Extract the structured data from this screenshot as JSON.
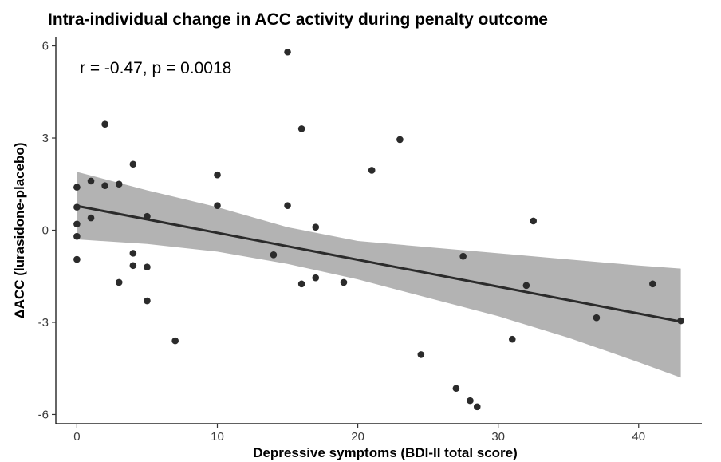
{
  "chart_data": {
    "type": "scatter",
    "title": "Intra-individual change in ACC activity during penalty outcome",
    "xlabel": "Depressive symptoms (BDI-II total score)",
    "ylabel": "ΔACC (lurasidone-placebo)",
    "annotation": "r = -0.47, p = 0.0018",
    "xlim": [
      -1.5,
      44.5
    ],
    "ylim": [
      -6.3,
      6.3
    ],
    "x_ticks": [
      0,
      10,
      20,
      30,
      40
    ],
    "y_ticks": [
      6,
      3,
      0,
      -3,
      -6
    ],
    "grid": false,
    "legend": "none",
    "point_color": "#2b2b2b",
    "fit": {
      "slope": -0.0876,
      "intercept": 0.79,
      "x_range": [
        0,
        43
      ],
      "band_color": "#b3b3b3",
      "line_color": "#2b2b2b",
      "ci_upper": [
        [
          0,
          1.9
        ],
        [
          5,
          1.3
        ],
        [
          10,
          0.75
        ],
        [
          15,
          0.1
        ],
        [
          20,
          -0.35
        ],
        [
          25,
          -0.55
        ],
        [
          30,
          -0.75
        ],
        [
          35,
          -0.95
        ],
        [
          40,
          -1.15
        ],
        [
          43,
          -1.25
        ]
      ],
      "ci_lower": [
        [
          0,
          -0.3
        ],
        [
          5,
          -0.45
        ],
        [
          10,
          -0.7
        ],
        [
          15,
          -1.1
        ],
        [
          20,
          -1.6
        ],
        [
          25,
          -2.2
        ],
        [
          30,
          -2.8
        ],
        [
          35,
          -3.5
        ],
        [
          40,
          -4.3
        ],
        [
          43,
          -4.8
        ]
      ]
    },
    "points": [
      {
        "x": 0,
        "y": 1.4
      },
      {
        "x": 0,
        "y": 0.75
      },
      {
        "x": 0,
        "y": 0.2
      },
      {
        "x": 0,
        "y": -0.2
      },
      {
        "x": 0,
        "y": -0.95
      },
      {
        "x": 1,
        "y": 1.6
      },
      {
        "x": 1,
        "y": 0.4
      },
      {
        "x": 2,
        "y": 3.45
      },
      {
        "x": 2,
        "y": 1.45
      },
      {
        "x": 3,
        "y": 1.5
      },
      {
        "x": 3,
        "y": -1.7
      },
      {
        "x": 4,
        "y": 2.15
      },
      {
        "x": 4,
        "y": -0.75
      },
      {
        "x": 4,
        "y": -1.15
      },
      {
        "x": 5,
        "y": 0.45
      },
      {
        "x": 5,
        "y": -1.2
      },
      {
        "x": 5,
        "y": -2.3
      },
      {
        "x": 7,
        "y": -3.6
      },
      {
        "x": 10,
        "y": 1.8
      },
      {
        "x": 10,
        "y": 0.8
      },
      {
        "x": 14,
        "y": -0.8
      },
      {
        "x": 15,
        "y": 5.8
      },
      {
        "x": 15,
        "y": 0.8
      },
      {
        "x": 16,
        "y": 3.3
      },
      {
        "x": 16,
        "y": -1.75
      },
      {
        "x": 17,
        "y": 0.1
      },
      {
        "x": 17,
        "y": -1.55
      },
      {
        "x": 19,
        "y": -1.7
      },
      {
        "x": 21,
        "y": 1.95
      },
      {
        "x": 23,
        "y": 2.95
      },
      {
        "x": 24.5,
        "y": -4.05
      },
      {
        "x": 27,
        "y": -5.15
      },
      {
        "x": 27.5,
        "y": -0.85
      },
      {
        "x": 28,
        "y": -5.55
      },
      {
        "x": 28.5,
        "y": -5.75
      },
      {
        "x": 31,
        "y": -3.55
      },
      {
        "x": 32,
        "y": -1.8
      },
      {
        "x": 32.5,
        "y": 0.3
      },
      {
        "x": 37,
        "y": -2.85
      },
      {
        "x": 41,
        "y": -1.75
      },
      {
        "x": 43,
        "y": -2.95
      }
    ]
  }
}
